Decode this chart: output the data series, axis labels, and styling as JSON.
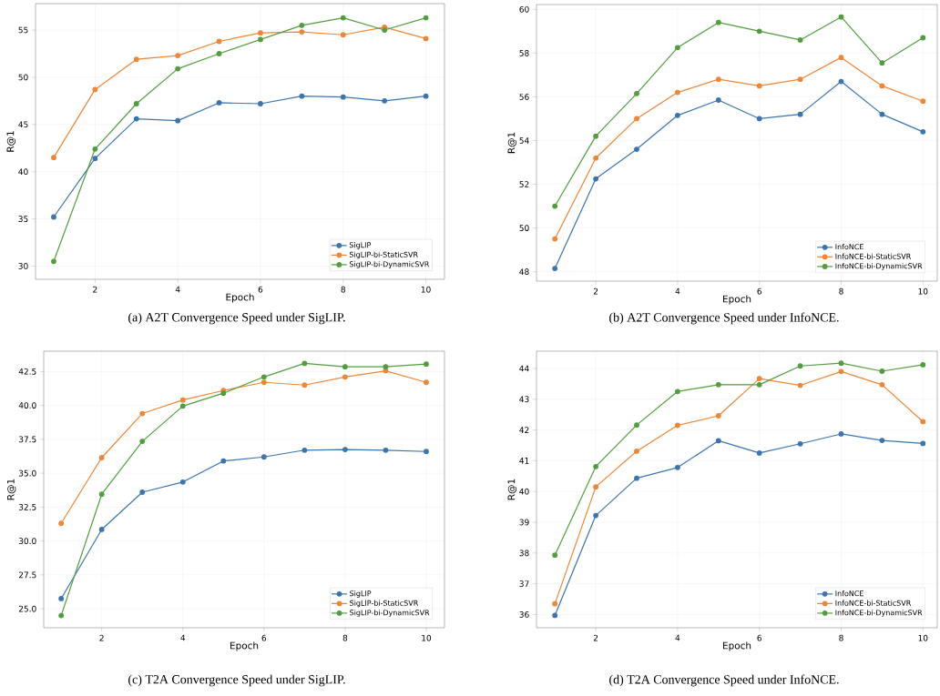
{
  "chart_data": [
    {
      "type": "line",
      "x": [
        1,
        2,
        3,
        4,
        5,
        6,
        7,
        8,
        9,
        10
      ],
      "xlim": [
        0.56,
        10.45
      ],
      "ylim": [
        28.6,
        57.8
      ],
      "xticks": [
        2,
        4,
        6,
        8,
        10
      ],
      "yticks": [
        30,
        35,
        40,
        45,
        50,
        55
      ],
      "xlabel": "Epoch",
      "ylabel": "R@1",
      "grid": true,
      "legend": "bottom right",
      "marker": "circle",
      "line_style": "solid",
      "series": [
        {
          "name": "SigLIP",
          "color": "#3b75af",
          "values": [
            35.2,
            41.4,
            45.6,
            45.4,
            47.3,
            47.2,
            48.0,
            47.9,
            47.5,
            48.0
          ]
        },
        {
          "name": "SigLIP-bi-StaticSVR",
          "color": "#ef8636",
          "values": [
            41.5,
            48.7,
            51.9,
            52.3,
            53.8,
            54.7,
            54.8,
            54.5,
            55.3,
            54.1
          ]
        },
        {
          "name": "SigLIP-bi-DynamicSVR",
          "color": "#519e3e",
          "values": [
            30.5,
            42.4,
            47.2,
            50.9,
            52.5,
            54.0,
            55.5,
            56.3,
            55.0,
            56.3
          ]
        }
      ],
      "annotations": [
        "(a) A2T Convergence Speed under SigLIP."
      ]
    },
    {
      "type": "line",
      "x": [
        1,
        2,
        3,
        4,
        5,
        6,
        7,
        8,
        9,
        10
      ],
      "xlim": [
        0.55,
        10.35
      ],
      "ylim": [
        47.57,
        60.22
      ],
      "xticks": [
        2,
        4,
        6,
        8,
        10
      ],
      "yticks": [
        48,
        50,
        52,
        54,
        56,
        58,
        60
      ],
      "xlabel": "Epoch",
      "ylabel": "R@1",
      "grid": true,
      "legend": "bottom right",
      "marker": "circle",
      "line_style": "solid",
      "series": [
        {
          "name": "InfoNCE",
          "color": "#3b75af",
          "values": [
            48.15,
            52.25,
            53.6,
            55.15,
            55.85,
            55.0,
            55.2,
            56.7,
            55.2,
            54.4
          ]
        },
        {
          "name": "InfoNCE-bi-StaticSVR",
          "color": "#ef8636",
          "values": [
            49.5,
            53.2,
            55.0,
            56.2,
            56.8,
            56.5,
            56.8,
            57.8,
            56.5,
            55.8
          ]
        },
        {
          "name": "InfoNCE-bi-DynamicSVR",
          "color": "#519e3e",
          "values": [
            51.0,
            54.2,
            56.15,
            58.25,
            59.4,
            59.0,
            58.6,
            59.65,
            57.55,
            58.7
          ]
        }
      ],
      "annotations": [
        "(b) A2T Convergence Speed under InfoNCE."
      ]
    },
    {
      "type": "line",
      "x": [
        1,
        2,
        3,
        4,
        5,
        6,
        7,
        8,
        9,
        10
      ],
      "xlim": [
        0.57,
        10.45
      ],
      "ylim": [
        23.6,
        44.0
      ],
      "xticks": [
        2,
        4,
        6,
        8,
        10
      ],
      "yticks": [
        {
          "value": 25,
          "label": "25.0"
        },
        {
          "value": 27.5,
          "label": "27.5"
        },
        {
          "value": 30,
          "label": "30.0"
        },
        {
          "value": 32.5,
          "label": "32.5"
        },
        {
          "value": 35,
          "label": "35.0"
        },
        {
          "value": 37.5,
          "label": "37.5"
        },
        {
          "value": 40,
          "label": "40.0"
        },
        {
          "value": 42.5,
          "label": "42.5"
        }
      ],
      "xlabel": "Epoch",
      "ylabel": "R@1",
      "grid": true,
      "legend": "bottom right",
      "marker": "circle",
      "line_style": "solid",
      "series": [
        {
          "name": "SigLIP",
          "color": "#3b75af",
          "values": [
            25.75,
            30.85,
            33.6,
            34.35,
            35.9,
            36.2,
            36.7,
            36.75,
            36.7,
            36.6
          ]
        },
        {
          "name": "SigLIP-bi-StaticSVR",
          "color": "#ef8636",
          "values": [
            31.3,
            36.15,
            39.4,
            40.4,
            41.1,
            41.7,
            41.5,
            42.1,
            42.55,
            41.7
          ]
        },
        {
          "name": "SigLIP-bi-DynamicSVR",
          "color": "#519e3e",
          "values": [
            24.5,
            33.45,
            37.35,
            39.95,
            40.9,
            42.1,
            43.1,
            42.85,
            42.85,
            43.05
          ]
        }
      ],
      "annotations": [
        "(c) T2A Convergence Speed under SigLIP."
      ]
    },
    {
      "type": "line",
      "x": [
        1,
        2,
        3,
        4,
        5,
        6,
        7,
        8,
        9,
        10
      ],
      "xlim": [
        0.55,
        10.35
      ],
      "ylim": [
        35.57,
        44.56
      ],
      "xticks": [
        2,
        4,
        6,
        8,
        10
      ],
      "yticks": [
        36,
        37,
        38,
        39,
        40,
        41,
        42,
        43,
        44
      ],
      "xlabel": "Epoch",
      "ylabel": "R@1",
      "grid": true,
      "legend": "bottom right",
      "marker": "circle",
      "line_style": "solid",
      "series": [
        {
          "name": "InfoNCE",
          "color": "#3b75af",
          "values": [
            35.97,
            39.22,
            40.43,
            40.78,
            41.65,
            41.25,
            41.55,
            41.87,
            41.66,
            41.56
          ]
        },
        {
          "name": "InfoNCE-bi-StaticSVR",
          "color": "#ef8636",
          "values": [
            36.35,
            40.15,
            41.31,
            42.15,
            42.46,
            43.67,
            43.45,
            43.9,
            43.47,
            42.27
          ]
        },
        {
          "name": "InfoNCE-bi-DynamicSVR",
          "color": "#519e3e",
          "values": [
            37.93,
            40.81,
            42.16,
            43.25,
            43.47,
            43.47,
            44.08,
            44.17,
            43.91,
            44.12
          ]
        }
      ],
      "annotations": [
        "(d) T2A Convergence Speed under InfoNCE."
      ]
    }
  ]
}
